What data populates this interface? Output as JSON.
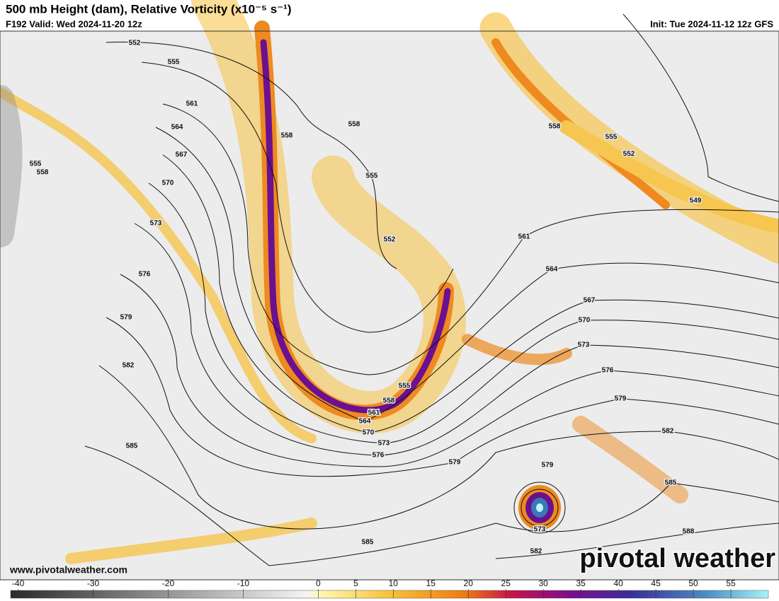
{
  "header": {
    "title": "500 mb Height (dam), Relative Vorticity (x10⁻⁵ s⁻¹)",
    "valid": "F192 Valid: Wed 2024-11-20 12z",
    "init": "Init: Tue 2024-11-12 12z GFS"
  },
  "map": {
    "contour_labels": [
      552,
      555,
      561,
      564,
      567,
      570,
      573,
      576,
      579,
      582,
      585,
      558,
      558,
      555,
      552,
      558,
      555,
      552,
      549,
      561,
      564,
      567,
      570,
      573,
      576,
      579,
      582,
      585,
      588,
      570,
      573,
      576,
      579,
      579,
      573,
      582,
      585,
      555,
      558,
      564,
      561,
      558,
      555
    ]
  },
  "colorbar": {
    "range": [
      -41,
      60
    ],
    "ticks": [
      -40,
      -30,
      -20,
      -10,
      0,
      5,
      10,
      15,
      20,
      25,
      30,
      35,
      40,
      45,
      50,
      55
    ]
  },
  "footer": {
    "url": "www.pivotalweather.com",
    "watermark": "pivotal weather"
  }
}
